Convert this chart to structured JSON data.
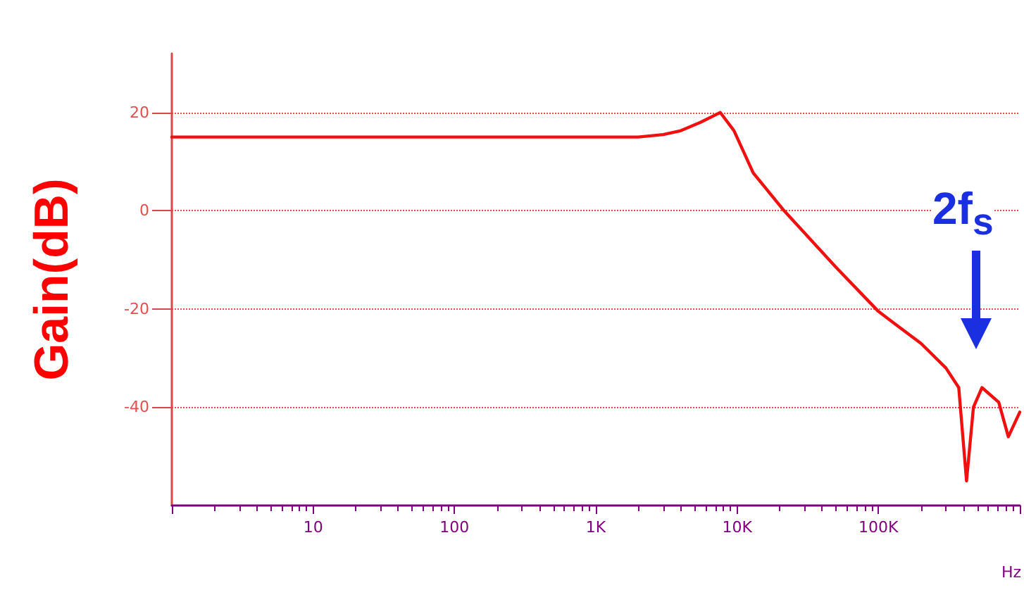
{
  "chart_data": {
    "type": "line",
    "ylabel": "Gain(dB)",
    "xlabel": "Hz",
    "x": [
      1,
      2000,
      3000,
      4000,
      5500,
      7600,
      9500,
      13000,
      21500,
      36000,
      50000,
      100000,
      200000,
      300000,
      370000,
      420000,
      470000,
      540000,
      710000,
      830000,
      1000000
    ],
    "series": [
      {
        "color": "#f01010",
        "values": [
          15,
          15,
          15.5,
          16.3,
          18,
          20,
          16.3,
          7.7,
          0,
          -7,
          -11.5,
          -20.5,
          -27,
          -32,
          -36,
          -55,
          -40,
          -36,
          -39,
          -46,
          -41
        ]
      }
    ],
    "log": "x",
    "xlim": [
      1,
      1000000
    ],
    "ylim": [
      -60,
      32
    ],
    "xticks": [
      {
        "value": 1,
        "label": null
      },
      10,
      100,
      {
        "value": 1000,
        "label": "1K"
      },
      {
        "value": 10000,
        "label": "10K"
      },
      {
        "value": 100000,
        "label": "100K"
      },
      {
        "value": 1000000,
        "label": null
      }
    ],
    "yticks": [
      -40,
      -20,
      0,
      20
    ],
    "grid": "y",
    "marker": "none",
    "line_style": "solid",
    "annotations": [
      "2f$_{s}$"
    ]
  }
}
